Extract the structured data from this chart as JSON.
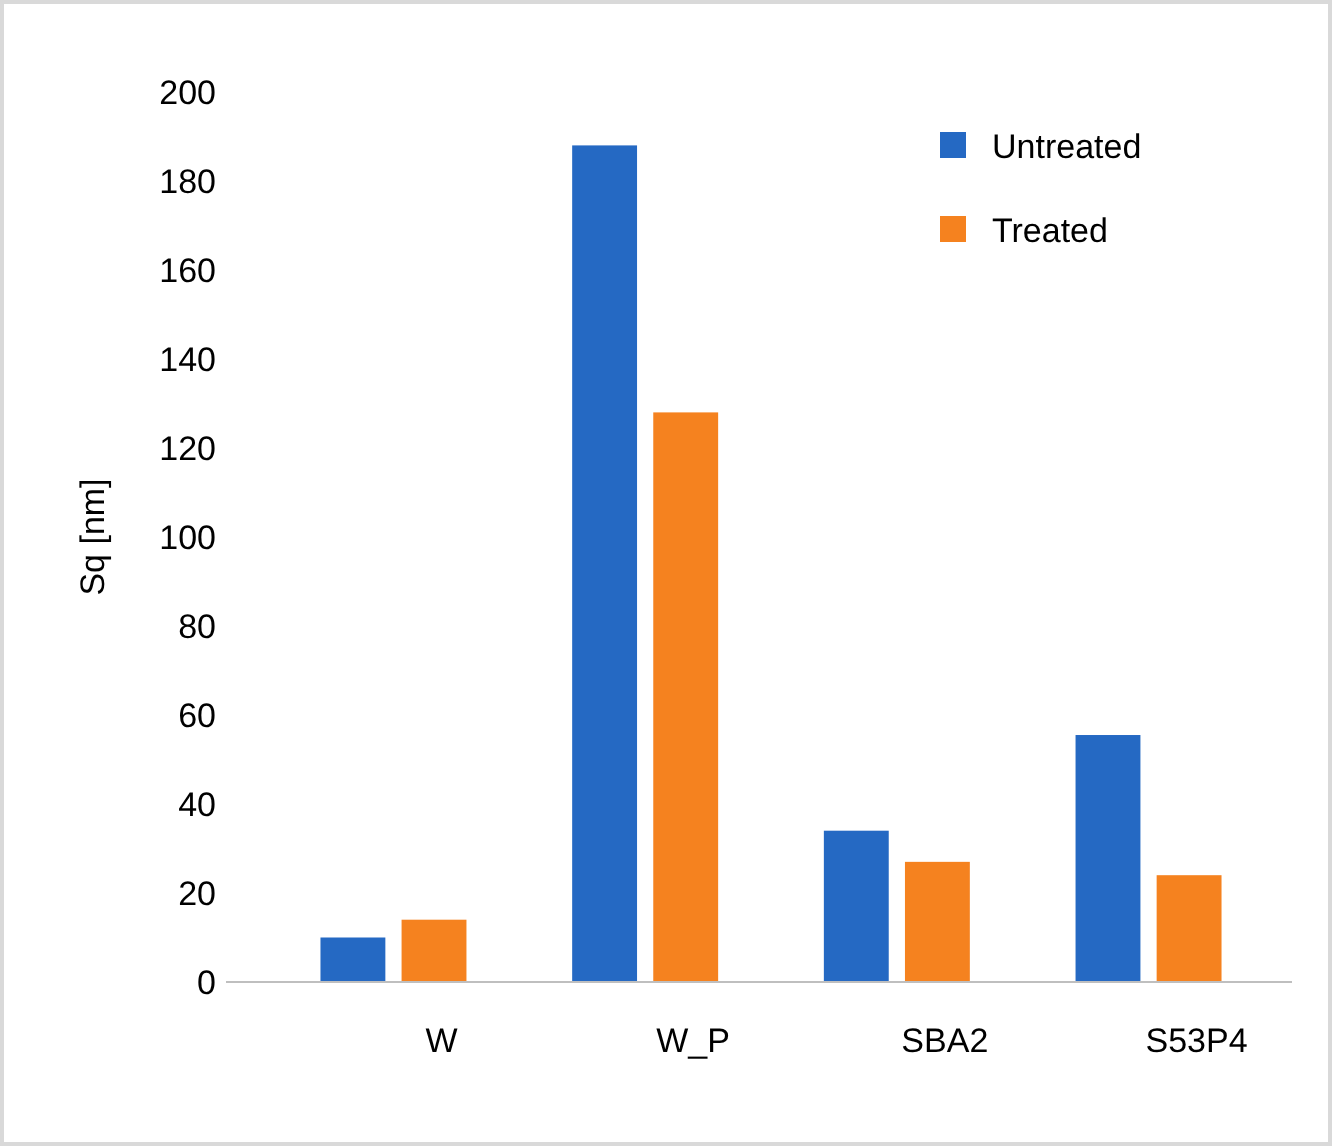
{
  "chart_data": {
    "type": "bar",
    "ylabel": "Sq [nm]",
    "categories": [
      "W",
      "W_P",
      "SBA2",
      "S53P4"
    ],
    "series": [
      {
        "name": "Untreated",
        "color": "#2569c3",
        "values": [
          10,
          188,
          34,
          55.5
        ]
      },
      {
        "name": "Treated",
        "color": "#f5821f",
        "values": [
          14,
          128,
          27,
          24
        ]
      }
    ],
    "ylim": [
      0,
      200
    ],
    "yticks": [
      0,
      20,
      40,
      60,
      80,
      100,
      120,
      140,
      160,
      180,
      200
    ],
    "legend": "top right",
    "grid": false
  }
}
